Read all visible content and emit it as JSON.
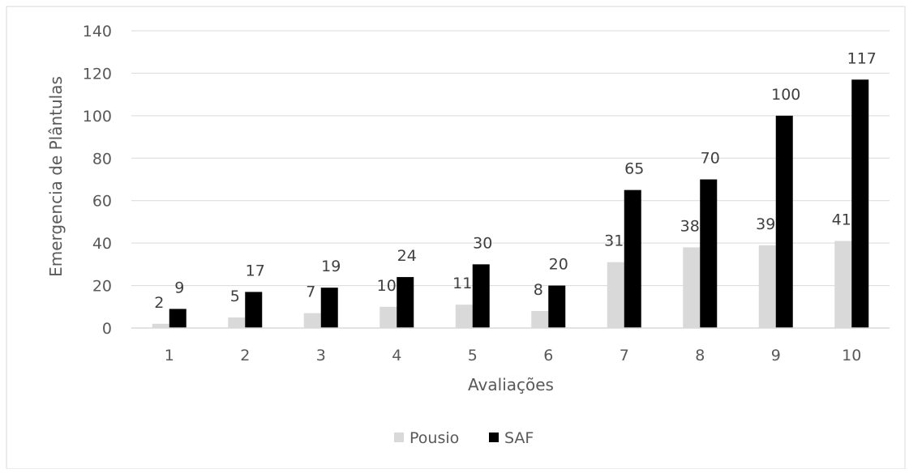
{
  "chart_data": {
    "type": "bar",
    "title": "",
    "xlabel": "Avaliações",
    "ylabel": "Emergencia de Plântulas",
    "categories": [
      "1",
      "2",
      "3",
      "4",
      "5",
      "6",
      "7",
      "8",
      "9",
      "10"
    ],
    "series": [
      {
        "name": "Pousio",
        "color": "#d9d9d9",
        "values": [
          2,
          5,
          7,
          10,
          11,
          8,
          31,
          38,
          39,
          41
        ]
      },
      {
        "name": "SAF",
        "color": "#000000",
        "values": [
          9,
          17,
          19,
          24,
          30,
          20,
          65,
          70,
          100,
          117
        ]
      }
    ],
    "ylim": [
      0,
      140
    ],
    "yticks": [
      0,
      20,
      40,
      60,
      80,
      100,
      120,
      140
    ],
    "grid": true,
    "legend_position": "bottom",
    "data_labels": true
  }
}
